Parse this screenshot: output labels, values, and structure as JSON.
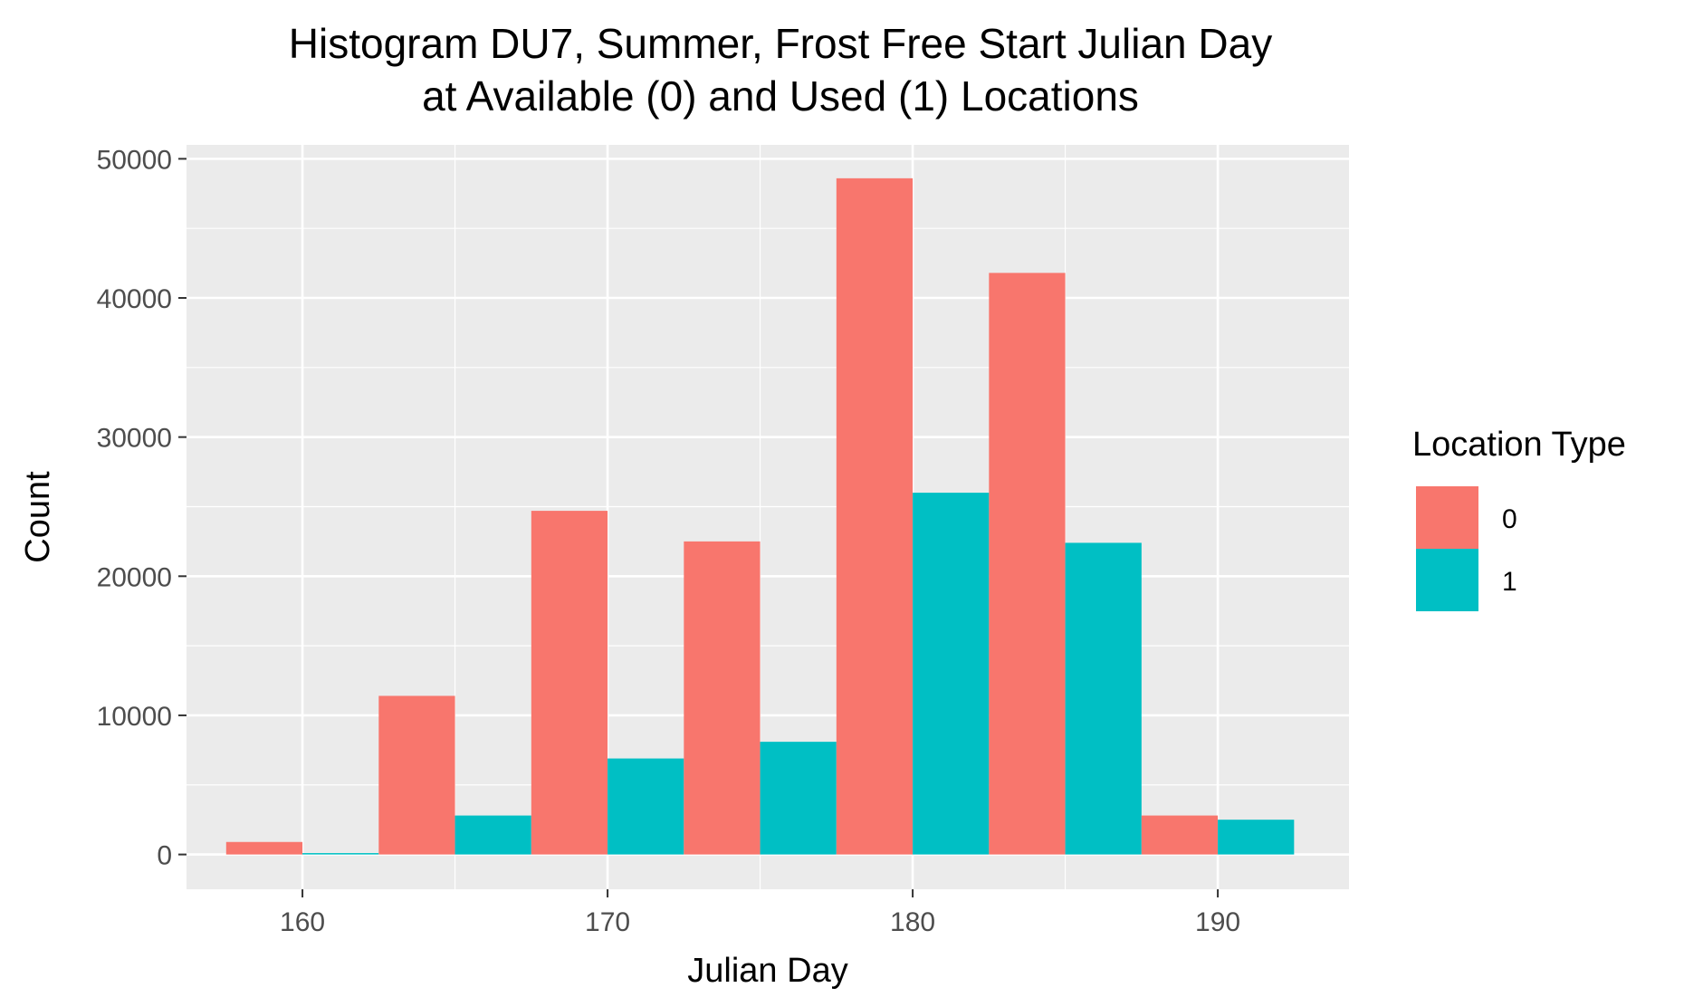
{
  "chart_data": {
    "type": "bar",
    "title_line1": "Histogram DU7, Summer, Frost Free Start Julian Day",
    "title_line2": "at Available (0) and Used (1) Locations",
    "xlabel": "Julian Day",
    "ylabel": "Count",
    "xlim": [
      156.2,
      194.3
    ],
    "ylim": [
      -2500,
      51000
    ],
    "x_ticks": [
      160,
      170,
      180,
      190
    ],
    "x_tick_labels": [
      "160",
      "170",
      "180",
      "190"
    ],
    "y_ticks": [
      0,
      10000,
      20000,
      30000,
      40000,
      50000
    ],
    "y_tick_labels": [
      "0",
      "10000",
      "20000",
      "30000",
      "40000",
      "50000"
    ],
    "bin_width": 5,
    "bins": [
      {
        "start": 157.5,
        "end": 162.5
      },
      {
        "start": 162.5,
        "end": 167.5
      },
      {
        "start": 167.5,
        "end": 172.5
      },
      {
        "start": 172.5,
        "end": 177.5
      },
      {
        "start": 177.5,
        "end": 182.5
      },
      {
        "start": 182.5,
        "end": 187.5
      },
      {
        "start": 187.5,
        "end": 192.5
      }
    ],
    "series": [
      {
        "name": "0",
        "color": "#F8766D",
        "values": [
          900,
          11400,
          24700,
          22500,
          48600,
          41800,
          2800
        ]
      },
      {
        "name": "1",
        "color": "#00BFC4",
        "values": [
          100,
          2800,
          6900,
          8100,
          26000,
          22400,
          2500
        ]
      }
    ],
    "legend": {
      "title": "Location Type",
      "position": "right"
    },
    "grid": true,
    "panel_background": "#EBEBEB",
    "grid_color": "#FFFFFF"
  }
}
